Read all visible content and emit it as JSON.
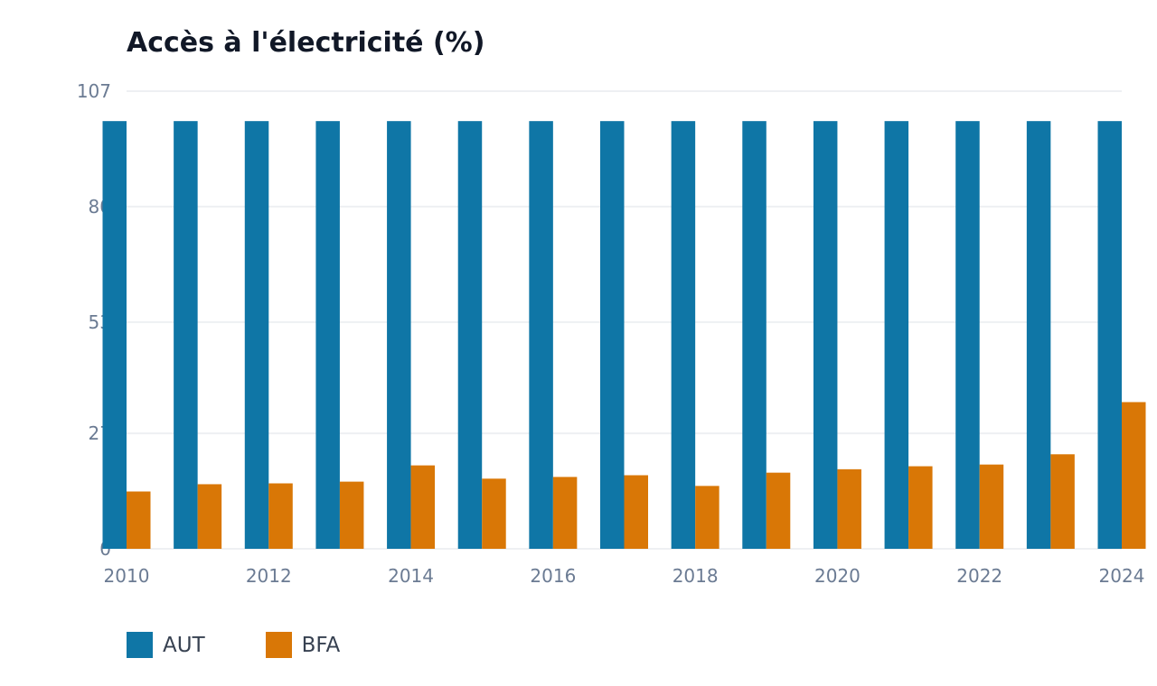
{
  "chart_data": {
    "type": "bar",
    "title": "Accès à l'électricité (%)",
    "categories": [
      "2010",
      "2011",
      "2012",
      "2013",
      "2014",
      "2015",
      "2016",
      "2017",
      "2018",
      "2019",
      "2020",
      "2021",
      "2022",
      "2023",
      "2024"
    ],
    "x_tick_labels": [
      "2010",
      "2012",
      "2014",
      "2016",
      "2018",
      "2020",
      "2022",
      "2024"
    ],
    "y_tick_labels": [
      "0",
      "27",
      "53",
      "80",
      "107"
    ],
    "ylim": [
      0,
      107
    ],
    "grid": true,
    "legend_position": "bottom-left",
    "series": [
      {
        "name": "AUT",
        "color": "#0f76a6",
        "values": [
          100,
          100,
          100,
          100,
          100,
          100,
          100,
          100,
          100,
          100,
          100,
          100,
          100,
          100,
          100
        ]
      },
      {
        "name": "BFA",
        "color": "#d97706",
        "values": [
          13.4,
          15.1,
          15.3,
          15.7,
          19.5,
          16.4,
          16.8,
          17.2,
          14.7,
          17.8,
          18.6,
          19.3,
          19.7,
          22.1,
          34.3
        ]
      }
    ]
  }
}
